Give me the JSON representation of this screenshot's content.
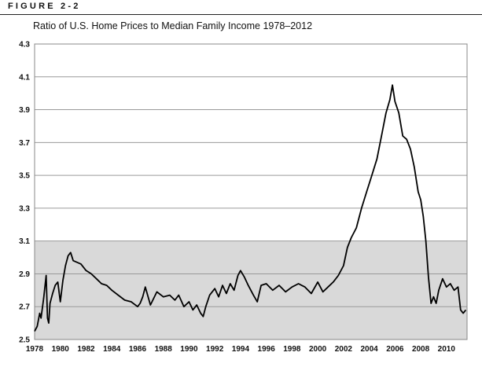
{
  "figure_label": "FIGURE 2-2",
  "chart_data": {
    "type": "line",
    "title": "Ratio of U.S. Home Prices to Median Family Income 1978–2012",
    "xlabel": "",
    "ylabel": "",
    "xlim": [
      1978,
      2011.6
    ],
    "ylim": [
      2.5,
      4.3
    ],
    "y_ticks": [
      "2.5",
      "2.7",
      "2.9",
      "3.1",
      "3.3",
      "3.5",
      "3.7",
      "3.9",
      "4.1",
      "4.3"
    ],
    "x_ticks": [
      "1978",
      "1980",
      "1982",
      "1984",
      "1986",
      "1988",
      "1990",
      "1992",
      "1994",
      "1996",
      "1998",
      "2000",
      "2002",
      "2004",
      "2006",
      "2008",
      "2010"
    ],
    "shaded_band": {
      "from": 2.5,
      "to": 3.1,
      "color": "#d9d9d9"
    },
    "grid": true,
    "legend": "none",
    "series": [
      {
        "name": "Ratio",
        "color": "#000000",
        "x": [
          1978.0,
          1978.2,
          1978.4,
          1978.5,
          1978.7,
          1978.9,
          1979.0,
          1979.1,
          1979.2,
          1979.4,
          1979.6,
          1979.8,
          1980.0,
          1980.2,
          1980.4,
          1980.6,
          1980.8,
          1981.0,
          1981.3,
          1981.6,
          1982.0,
          1982.4,
          1982.8,
          1983.2,
          1983.6,
          1984.0,
          1984.5,
          1985.0,
          1985.5,
          1986.0,
          1986.2,
          1986.4,
          1986.6,
          1987.0,
          1987.5,
          1988.0,
          1988.5,
          1988.9,
          1989.2,
          1989.6,
          1990.0,
          1990.3,
          1990.6,
          1990.9,
          1991.1,
          1991.3,
          1991.6,
          1992.0,
          1992.3,
          1992.6,
          1992.9,
          1993.2,
          1993.5,
          1993.8,
          1994.0,
          1994.3,
          1994.6,
          1995.0,
          1995.3,
          1995.6,
          1996.0,
          1996.5,
          1997.0,
          1997.5,
          1998.0,
          1998.5,
          1999.0,
          1999.5,
          2000.0,
          2000.4,
          2000.8,
          2001.2,
          2001.6,
          2002.0,
          2002.3,
          2002.6,
          2003.0,
          2003.4,
          2003.8,
          2004.2,
          2004.6,
          2005.0,
          2005.3,
          2005.6,
          2005.8,
          2006.0,
          2006.3,
          2006.6,
          2006.9,
          2007.2,
          2007.5,
          2007.8,
          2008.0,
          2008.2,
          2008.4,
          2008.6,
          2008.8,
          2009.0,
          2009.2,
          2009.4,
          2009.7,
          2010.0,
          2010.3,
          2010.6,
          2010.9,
          2011.1,
          2011.3,
          2011.5
        ],
        "values": [
          2.55,
          2.58,
          2.66,
          2.63,
          2.75,
          2.89,
          2.63,
          2.6,
          2.72,
          2.78,
          2.83,
          2.85,
          2.73,
          2.86,
          2.95,
          3.01,
          3.03,
          2.98,
          2.97,
          2.96,
          2.92,
          2.9,
          2.87,
          2.84,
          2.83,
          2.8,
          2.77,
          2.74,
          2.73,
          2.7,
          2.72,
          2.76,
          2.82,
          2.71,
          2.79,
          2.76,
          2.77,
          2.74,
          2.77,
          2.7,
          2.73,
          2.68,
          2.71,
          2.66,
          2.64,
          2.7,
          2.77,
          2.81,
          2.76,
          2.83,
          2.78,
          2.84,
          2.8,
          2.89,
          2.92,
          2.88,
          2.83,
          2.77,
          2.73,
          2.83,
          2.84,
          2.8,
          2.83,
          2.79,
          2.82,
          2.84,
          2.82,
          2.78,
          2.85,
          2.79,
          2.82,
          2.85,
          2.89,
          2.95,
          3.06,
          3.12,
          3.18,
          3.3,
          3.4,
          3.5,
          3.6,
          3.76,
          3.88,
          3.96,
          4.05,
          3.95,
          3.88,
          3.74,
          3.72,
          3.66,
          3.55,
          3.4,
          3.35,
          3.25,
          3.1,
          2.88,
          2.72,
          2.76,
          2.72,
          2.8,
          2.87,
          2.82,
          2.84,
          2.8,
          2.82,
          2.68,
          2.66,
          2.68
        ]
      }
    ]
  }
}
